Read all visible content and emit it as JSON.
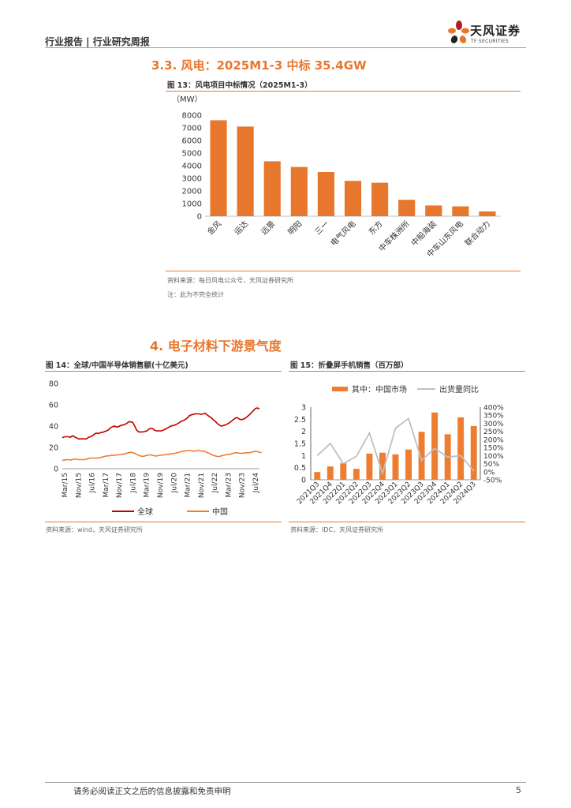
{
  "header": {
    "report_type": "行业报告 | 行业研究周报"
  },
  "logo": {
    "cn": "天风证券",
    "en": "TF SECURITIES",
    "brand_color": "#e8772e",
    "accent_color": "#b01e24"
  },
  "section_33": {
    "title": "3.3. 风电：2025M1-3 中标 35.4GW"
  },
  "fig13": {
    "title": "图 13：风电项目中标情况（2025M1-3）",
    "source": "资料来源：每日风电公众号，天风证券研究所",
    "note": "注：此为不完全统计"
  },
  "section_4": {
    "title": "4. 电子材料下游景气度"
  },
  "fig14": {
    "title": "图 14：全球/中国半导体销售额(十亿美元)",
    "source": "资料来源：wind，天风证券研究所"
  },
  "fig15": {
    "title": "图 15：折叠屏手机销售（百万部）",
    "source": "资料来源：IDC，天风证券研究所"
  },
  "chart_data": [
    {
      "id": "fig13",
      "type": "bar",
      "unit_label": "（MW）",
      "categories": [
        "金风",
        "运达",
        "远景",
        "明阳",
        "三一",
        "电气风电",
        "东方",
        "中车株洲所",
        "中船海装",
        "中车山东风电",
        "联合动力"
      ],
      "values": [
        7600,
        7100,
        4350,
        3900,
        3500,
        2800,
        2650,
        1300,
        850,
        780,
        380
      ],
      "ylim": [
        0,
        8000
      ],
      "yticks": [
        "0",
        "1000",
        "2000",
        "3000",
        "4000",
        "5000",
        "6000",
        "7000",
        "8000"
      ],
      "color": "#e8772e"
    },
    {
      "id": "fig14",
      "type": "line",
      "ylim": [
        0,
        80
      ],
      "yticks": [
        "0",
        "20",
        "40",
        "60",
        "80"
      ],
      "xticks": [
        "Mar/15",
        "Nov/15",
        "Jul/16",
        "Mar/17",
        "Nov/17",
        "Jul/18",
        "Mar/19",
        "Nov/19",
        "Jul/20",
        "Mar/21",
        "Nov/21",
        "Jul/22",
        "Mar/23",
        "Nov/23",
        "Jul/24"
      ],
      "series": [
        {
          "name": "全球",
          "color": "#c00000",
          "values": [
            29,
            30,
            30,
            30,
            29.5,
            31,
            30,
            29,
            28,
            28,
            28,
            28,
            28,
            29.5,
            30,
            31,
            32.5,
            33.5,
            33,
            34,
            34,
            35,
            35.5,
            36.5,
            38.5,
            39.5,
            40,
            39,
            39.5,
            40.5,
            41,
            41.5,
            42.5,
            44,
            44,
            43.5,
            40,
            36,
            34.5,
            34.5,
            34.5,
            35,
            35.5,
            37,
            38,
            37.5,
            36,
            35.5,
            35.5,
            35.5,
            36,
            37,
            38,
            39,
            40,
            40.5,
            41,
            42,
            43,
            44.5,
            45,
            46,
            47.5,
            49.5,
            50.5,
            51,
            51.5,
            51.5,
            51.5,
            51,
            51.5,
            52,
            50.5,
            49,
            48,
            46,
            44.5,
            42.5,
            41,
            40,
            40.5,
            41,
            42,
            43,
            44.5,
            46,
            47.5,
            48,
            46.5,
            46,
            46.5,
            47.5,
            49,
            50.5,
            52.5,
            54.5,
            56.5,
            57,
            56
          ]
        },
        {
          "name": "中国",
          "color": "#ed7d31",
          "values": [
            8,
            8,
            8.5,
            8.5,
            8,
            8.5,
            9,
            9,
            8.5,
            8.5,
            8.5,
            8.5,
            9,
            9.5,
            10,
            10,
            10,
            10,
            10,
            10.5,
            11,
            11.5,
            12,
            12,
            12.5,
            12.5,
            12.5,
            13,
            13,
            13.5,
            13.5,
            14,
            14.5,
            15,
            15.5,
            15,
            14.5,
            13.5,
            12.5,
            12,
            11.5,
            12,
            12.5,
            13,
            13,
            12.5,
            12,
            12,
            12.5,
            12.5,
            13,
            13,
            13.5,
            13.5,
            14,
            14,
            14.5,
            15,
            15.5,
            16,
            16.5,
            16.5,
            17,
            17,
            17,
            16.5,
            16.5,
            17,
            17,
            16.5,
            16.5,
            16,
            15,
            14.5,
            13.5,
            12.5,
            12,
            11.5,
            11.5,
            12,
            12.5,
            13,
            13.5,
            13.5,
            14,
            14.5,
            15,
            15,
            14.5,
            14.5,
            14.5,
            15,
            15,
            15,
            15.5,
            16,
            16.5,
            16,
            15.5,
            15
          ]
        }
      ]
    },
    {
      "id": "fig15",
      "type": "bar_line_combo",
      "categories": [
        "2021Q3",
        "2021Q4",
        "2022Q1",
        "2022Q2",
        "2022Q3",
        "2022Q4",
        "2023Q1",
        "2023Q2",
        "2023Q3",
        "2023Q4",
        "2024Q1",
        "2024Q2",
        "2024Q3"
      ],
      "bar_series": {
        "name": "其中：中国市场",
        "color": "#ed7d31",
        "values": [
          0.32,
          0.55,
          0.68,
          0.45,
          1.08,
          1.12,
          1.05,
          1.25,
          1.98,
          2.78,
          1.88,
          2.58,
          2.22
        ]
      },
      "line_series": {
        "name": "出货量同比",
        "color": "#bfbfbf",
        "values": [
          100,
          175,
          50,
          95,
          240,
          -10,
          270,
          330,
          70,
          145,
          90,
          100,
          5
        ]
      },
      "y_left": {
        "ylim": [
          0,
          3
        ],
        "ticks": [
          "0",
          "0.5",
          "1",
          "1.5",
          "2",
          "2.5",
          "3"
        ]
      },
      "y_right": {
        "ylim": [
          -50,
          400
        ],
        "ticks": [
          "-50%",
          "0%",
          "50%",
          "100%",
          "150%",
          "200%",
          "250%",
          "300%",
          "350%",
          "400%"
        ]
      }
    }
  ],
  "footer": {
    "disclaimer": "请务必阅读正文之后的信息披露和免责申明",
    "page_number": "5"
  }
}
